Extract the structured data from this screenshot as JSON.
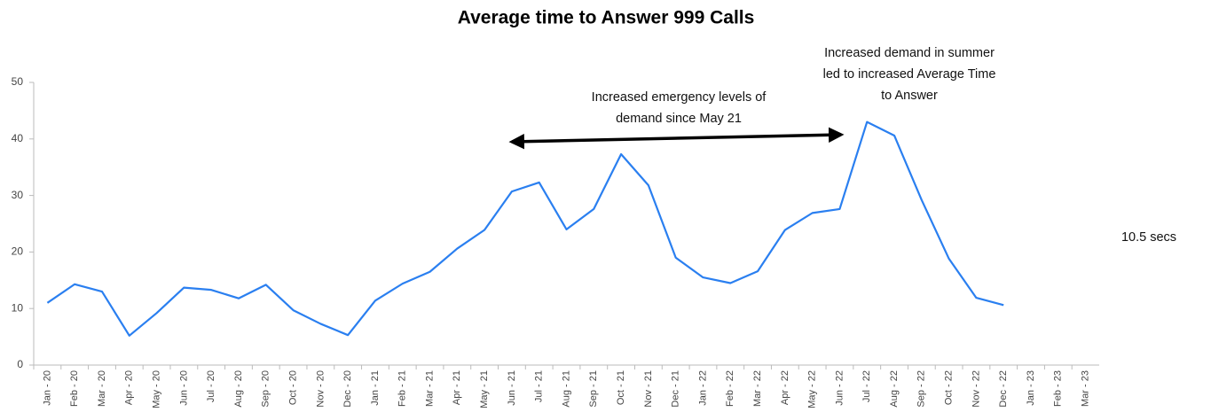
{
  "chart_data": {
    "type": "line",
    "title": "Average time to Answer 999 Calls",
    "categories": [
      "Jan - 20",
      "Feb - 20",
      "Mar - 20",
      "Apr - 20",
      "May - 20",
      "Jun - 20",
      "Jul - 20",
      "Aug - 20",
      "Sep - 20",
      "Oct - 20",
      "Nov - 20",
      "Dec - 20",
      "Jan - 21",
      "Feb - 21",
      "Mar - 21",
      "Apr - 21",
      "May - 21",
      "Jun - 21",
      "Jul - 21",
      "Aug - 21",
      "Sep - 21",
      "Oct - 21",
      "Nov - 21",
      "Dec - 21",
      "Jan - 22",
      "Feb - 22",
      "Mar - 22",
      "Apr - 22",
      "May - 22",
      "Jun - 22",
      "Jul - 22",
      "Aug - 22",
      "Sep - 22",
      "Oct - 22",
      "Nov - 22",
      "Dec - 22",
      "Jan - 23",
      "Feb - 23",
      "Mar - 23"
    ],
    "values": [
      11,
      14.3,
      13,
      5.2,
      9.2,
      13.7,
      13.3,
      11.8,
      14.2,
      9.7,
      7.3,
      5.3,
      11.4,
      14.4,
      16.5,
      20.6,
      23.9,
      30.7,
      32.3,
      24,
      27.6,
      37.3,
      31.8,
      19,
      15.5,
      14.5,
      16.6,
      23.9,
      26.9,
      27.6,
      43,
      40.6,
      29.2,
      18.8,
      11.9,
      10.6,
      null,
      null,
      null
    ],
    "color": "#2a7ff0",
    "ylim": [
      0,
      50
    ],
    "yticks": [
      0,
      10,
      20,
      30,
      40,
      50
    ],
    "annotations": [
      {
        "lines": [
          "Increased emergency levels of",
          "demand since May 21"
        ]
      },
      {
        "lines": [
          "Increased demand in summer",
          "led to increased Average Time",
          "to Answer"
        ]
      },
      {
        "lines": [
          "10.5 secs"
        ]
      }
    ]
  }
}
